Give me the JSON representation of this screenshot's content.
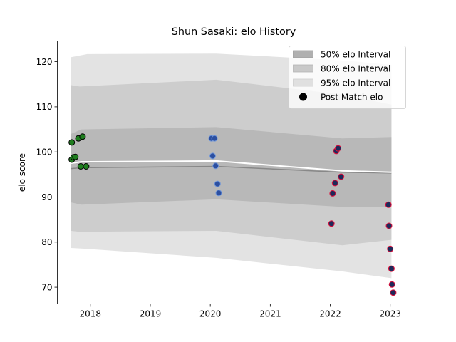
{
  "chart_data": {
    "type": "scatter",
    "title": "Shun Sasaki: elo History",
    "xlabel": "",
    "ylabel": "elo score",
    "xlim": [
      2017.45,
      2023.33
    ],
    "ylim": [
      66.3,
      124.6
    ],
    "x_ticks": [
      2018,
      2019,
      2020,
      2021,
      2022,
      2023
    ],
    "y_ticks": [
      70,
      80,
      90,
      100,
      110,
      120
    ],
    "legend_position": "top-right",
    "grid": false,
    "bands": [
      {
        "name": "95% elo Interval",
        "color": "#e3e3e3",
        "x": [
          2017.68,
          2017.95,
          2020.1,
          2022.2,
          2023.02
        ],
        "lower": [
          78.7,
          78.5,
          76.5,
          73.5,
          72.0
        ],
        "upper": [
          121.0,
          121.7,
          121.8,
          120.3,
          119.3
        ]
      },
      {
        "name": "80% elo Interval",
        "color": "#cdcdcd",
        "x": [
          2017.68,
          2017.82,
          2020.1,
          2022.2,
          2023.02
        ],
        "lower": [
          82.5,
          82.3,
          82.5,
          79.3,
          80.5
        ],
        "upper": [
          114.8,
          114.5,
          116.0,
          112.7,
          110.5
        ]
      },
      {
        "name": "50% elo Interval",
        "color": "#b8b8b8",
        "x": [
          2017.68,
          2017.85,
          2020.1,
          2022.2,
          2023.02
        ],
        "lower": [
          88.8,
          88.3,
          89.5,
          87.8,
          87.8
        ],
        "upper": [
          104.0,
          105.0,
          105.5,
          103.0,
          103.3
        ]
      }
    ],
    "median_line": {
      "color": "#ffffff",
      "x": [
        2017.68,
        2017.85,
        2020.1,
        2022.2,
        2023.02
      ],
      "y": [
        97.5,
        97.8,
        98.0,
        95.8,
        95.5
      ]
    },
    "mean_line": {
      "color": "#888888",
      "x": [
        2017.68,
        2017.85,
        2020.1,
        2022.2,
        2023.02
      ],
      "y": [
        96.3,
        96.5,
        96.8,
        95.5,
        95.3
      ]
    },
    "series": [
      {
        "name": "",
        "fill": "#1e7d1e",
        "edge": "#000000",
        "x": [
          2017.69,
          2017.69,
          2017.72,
          2017.75,
          2017.8,
          2017.84,
          2017.87,
          2017.93
        ],
        "y": [
          102.1,
          98.3,
          98.8,
          98.9,
          103.0,
          96.8,
          103.4,
          96.8
        ]
      },
      {
        "name": "",
        "fill": "#2c4fa0",
        "edge": "#6f95d8",
        "x": [
          2020.02,
          2020.07,
          2020.04,
          2020.09,
          2020.12,
          2020.14
        ],
        "y": [
          103.0,
          103.0,
          99.1,
          96.9,
          92.9,
          90.9
        ]
      },
      {
        "name": "",
        "fill": "#1e2a5a",
        "edge": "#e0103c",
        "x": [
          2022.02,
          2022.04,
          2022.08,
          2022.1,
          2022.13,
          2022.18,
          2022.97,
          2022.98,
          2023.0,
          2023.02,
          2023.03,
          2023.05
        ],
        "y": [
          84.1,
          90.8,
          93.1,
          100.2,
          100.8,
          94.5,
          88.3,
          83.6,
          78.5,
          74.1,
          70.6,
          68.8
        ]
      }
    ],
    "legend": [
      {
        "label": "50% elo Interval",
        "kind": "patch",
        "color": "#b0b0b0",
        "edge": "#9a9a9a"
      },
      {
        "label": "80% elo Interval",
        "kind": "patch",
        "color": "#c9c9c9",
        "edge": "#b5b5b5"
      },
      {
        "label": "95% elo Interval",
        "kind": "patch",
        "color": "#e0e0e0",
        "edge": "#cfcfcf"
      },
      {
        "label": "Post Match elo",
        "kind": "marker",
        "color": "#000000",
        "edge": "#000000"
      }
    ]
  }
}
